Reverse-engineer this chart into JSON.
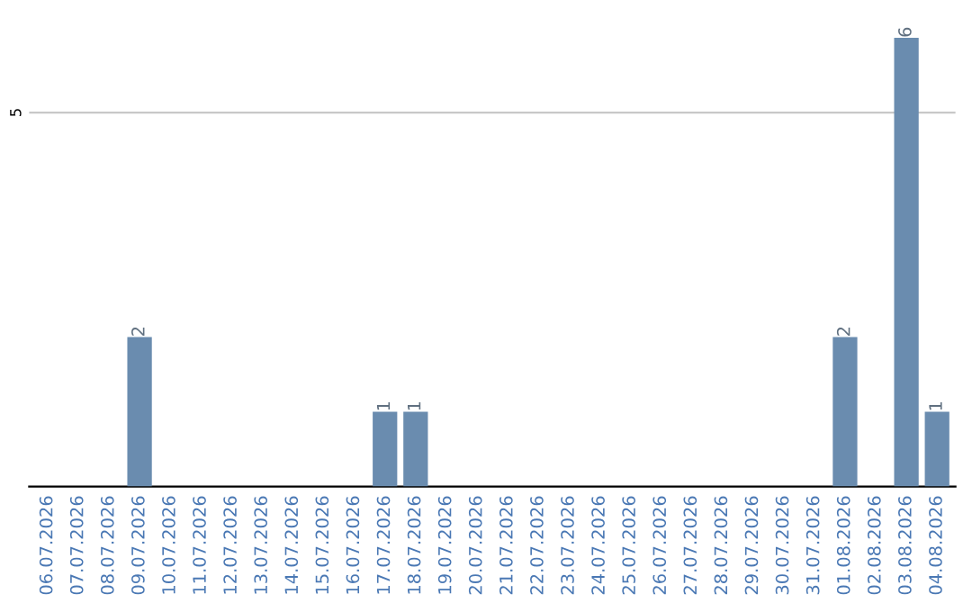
{
  "chart_data": {
    "type": "bar",
    "categories": [
      "06.07.2026",
      "07.07.2026",
      "08.07.2026",
      "09.07.2026",
      "10.07.2026",
      "11.07.2026",
      "12.07.2026",
      "13.07.2026",
      "14.07.2026",
      "15.07.2026",
      "16.07.2026",
      "17.07.2026",
      "18.07.2026",
      "19.07.2026",
      "20.07.2026",
      "21.07.2026",
      "22.07.2026",
      "23.07.2026",
      "24.07.2026",
      "25.07.2026",
      "26.07.2026",
      "27.07.2026",
      "28.07.2026",
      "29.07.2026",
      "30.07.2026",
      "31.07.2026",
      "01.08.2026",
      "02.08.2026",
      "03.08.2026",
      "04.08.2026"
    ],
    "values": [
      0,
      0,
      0,
      2,
      0,
      0,
      0,
      0,
      0,
      0,
      0,
      1,
      1,
      0,
      0,
      0,
      0,
      0,
      0,
      0,
      0,
      0,
      0,
      0,
      0,
      0,
      2,
      0,
      6,
      1
    ],
    "value_labels": [
      null,
      null,
      null,
      "2",
      null,
      null,
      null,
      null,
      null,
      null,
      null,
      "1",
      "1",
      null,
      null,
      null,
      null,
      null,
      null,
      null,
      null,
      null,
      null,
      null,
      null,
      null,
      "2",
      null,
      "6",
      "1"
    ],
    "color": "#6a8caf",
    "ref_lines": [
      {
        "axis": "y",
        "value": 5,
        "label": "5",
        "color": "#c8c8c8"
      }
    ]
  }
}
